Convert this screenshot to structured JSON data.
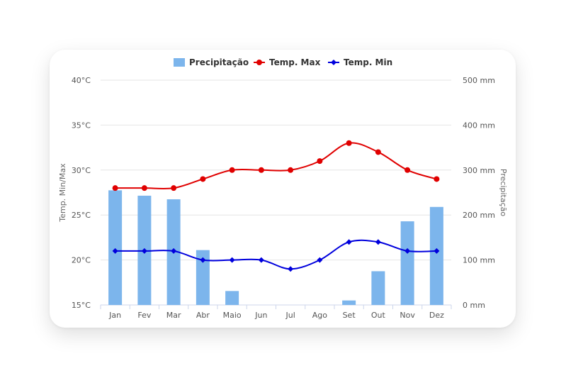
{
  "chart_data": {
    "type": "bar",
    "categories": [
      "Jan",
      "Fev",
      "Mar",
      "Abr",
      "Maio",
      "Jun",
      "Jul",
      "Ago",
      "Set",
      "Out",
      "Nov",
      "Dez"
    ],
    "series": [
      {
        "name": "Precipitação",
        "type": "bar",
        "axis": "right",
        "color": "#7cb5ec",
        "values": [
          255,
          243,
          235,
          122,
          31,
          0,
          0,
          0,
          10,
          75,
          186,
          218
        ]
      },
      {
        "name": "Temp. Max",
        "type": "line",
        "axis": "left",
        "color": "#e00000",
        "marker": "circle",
        "values": [
          28,
          28,
          28,
          29,
          30,
          30,
          30,
          31,
          33,
          32,
          30,
          29
        ]
      },
      {
        "name": "Temp. Min",
        "type": "line",
        "axis": "left",
        "color": "#0000dd",
        "marker": "diamond",
        "values": [
          21,
          21,
          21,
          20,
          20,
          20,
          19,
          20,
          22,
          22,
          21,
          21
        ]
      }
    ],
    "y_left": {
      "label": "Temp. Min/Max",
      "ticks": [
        "15°C",
        "20°C",
        "25°C",
        "30°C",
        "35°C",
        "40°C"
      ],
      "range": [
        15,
        40
      ]
    },
    "y_right": {
      "label": "Precipitação",
      "ticks": [
        "0 mm",
        "100 mm",
        "200 mm",
        "300 mm",
        "400 mm",
        "500 mm"
      ],
      "range": [
        0,
        500
      ]
    },
    "grid": true,
    "legend_position": "top-center"
  }
}
